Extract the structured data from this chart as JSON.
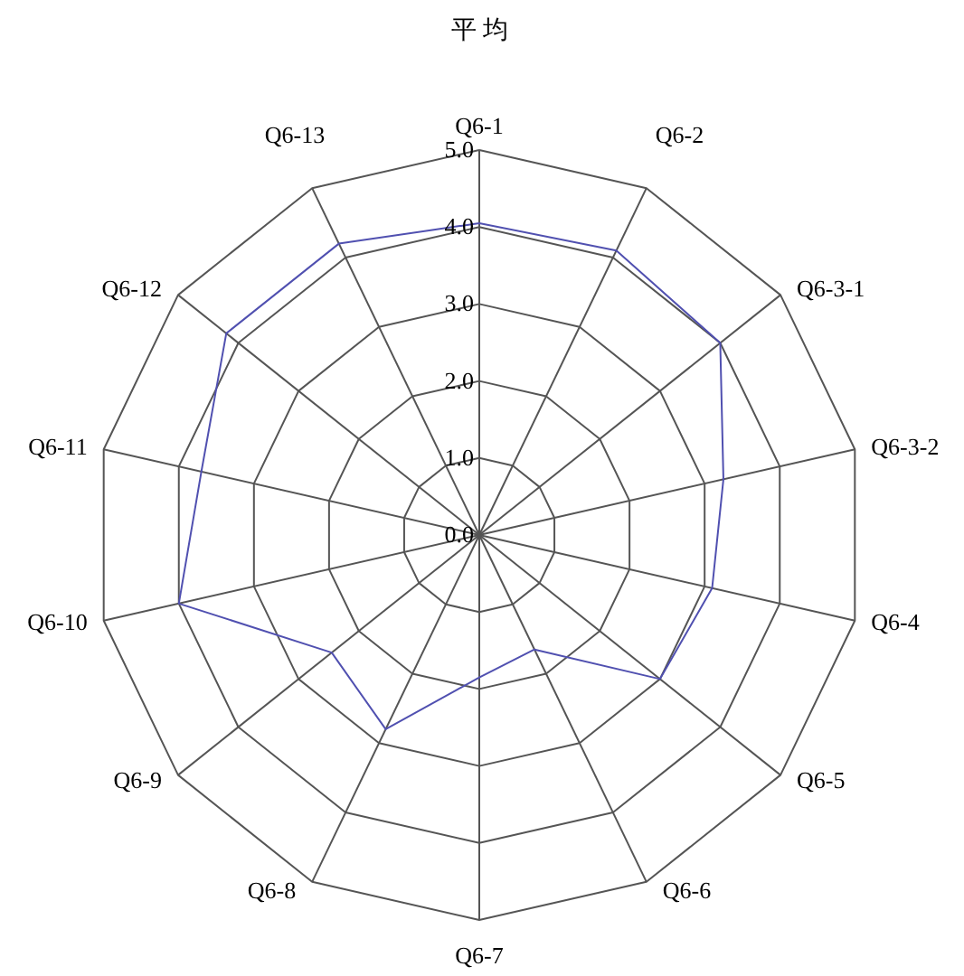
{
  "chart_data": {
    "type": "radar",
    "title": "平 均",
    "categories": [
      "Q6-1",
      "Q6-2",
      "Q6-3-1",
      "Q6-3-2",
      "Q6-4",
      "Q6-5",
      "Q6-6",
      "Q6-7",
      "Q6-8",
      "Q6-9",
      "Q6-10",
      "Q6-11",
      "Q6-12",
      "Q6-13"
    ],
    "series": [
      {
        "color": "#5050b0",
        "values": [
          4.05,
          4.1,
          4.0,
          3.25,
          3.1,
          3.0,
          1.65,
          1.85,
          2.8,
          2.45,
          4.0,
          3.7,
          4.2,
          4.2
        ]
      }
    ],
    "ylim": [
      0,
      5
    ],
    "yticks": [
      {
        "value": 0,
        "label": "0.0"
      },
      {
        "value": 1,
        "label": "1.0"
      },
      {
        "value": 2,
        "label": "2.0"
      },
      {
        "value": 3,
        "label": "3.0"
      },
      {
        "value": 4,
        "label": "4.0"
      },
      {
        "value": 5,
        "label": "5.0"
      }
    ],
    "grid": true
  }
}
